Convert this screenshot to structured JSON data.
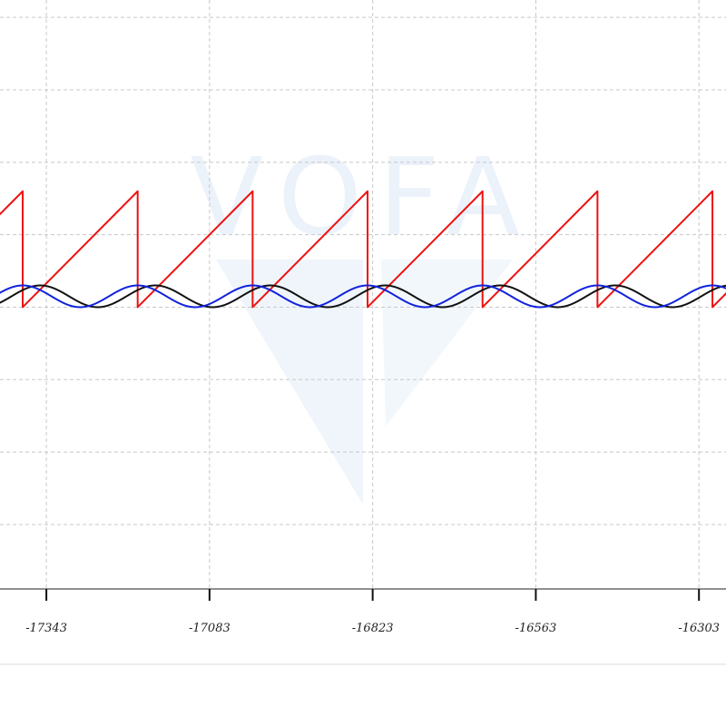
{
  "chart_data": {
    "type": "line",
    "title": "",
    "xlabel": "",
    "ylabel": "",
    "x_ticks": [
      -17343,
      -17083,
      -16823,
      -16563,
      -16303
    ],
    "xlim": [
      -17416.9,
      -16259.9
    ],
    "ylim": [
      -3.89,
      4.24
    ],
    "grid": true,
    "watermark": "VOFA",
    "series": [
      {
        "color": "#ee1111",
        "waveform": "sawtooth",
        "period": 183.2,
        "phase_x": -17380.7,
        "min": 0.0,
        "max": 1.6,
        "values_note": "ramps linearly from 0 to 1.6 over each period, then drops"
      },
      {
        "color": "#111111",
        "waveform": "sine",
        "period": 183.2,
        "peak_x": -17352.7,
        "offset": 0.15,
        "amplitude": 0.15
      },
      {
        "color": "#1122dd",
        "waveform": "sine",
        "period": 183.2,
        "peak_x": -17380.7,
        "offset": 0.15,
        "amplitude": 0.15
      }
    ]
  }
}
